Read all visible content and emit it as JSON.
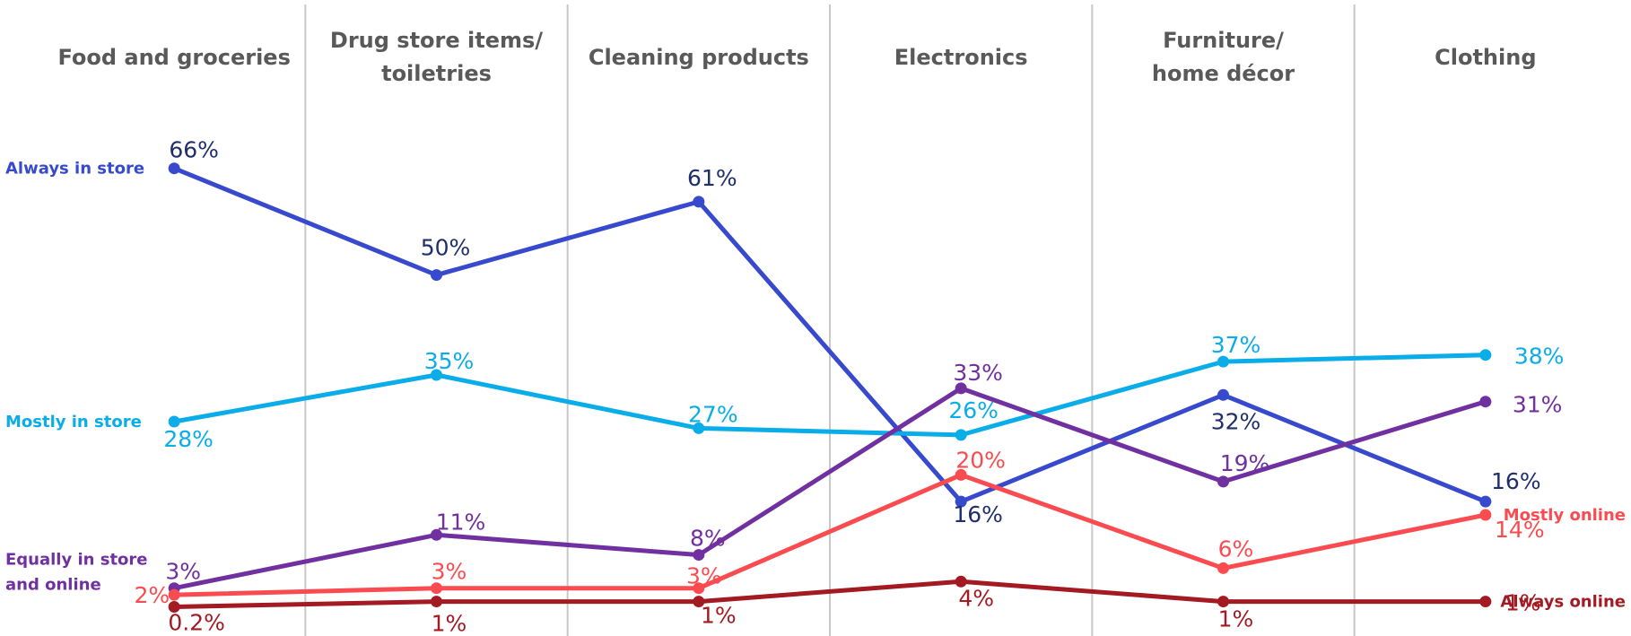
{
  "chart_data": {
    "type": "line",
    "categories": [
      "Food and groceries",
      "Drug store items/ toiletries",
      "Cleaning products",
      "Electronics",
      "Furniture/ home décor",
      "Clothing"
    ],
    "category_label_lines": [
      [
        "Food and groceries"
      ],
      [
        "Drug store items/",
        "toiletries"
      ],
      [
        "Cleaning products"
      ],
      [
        "Electronics"
      ],
      [
        "Furniture/",
        "home décor"
      ],
      [
        "Clothing"
      ]
    ],
    "unit": "%",
    "ylim": [
      0,
      70
    ],
    "grid": "vertical separators between categories",
    "series": [
      {
        "name": "Always in store",
        "name_lines": [
          "Always in store"
        ],
        "color": "#3749CC",
        "label_color": "#1F2F6B",
        "label_side": "left",
        "values": [
          66,
          50,
          61,
          16,
          32,
          16
        ],
        "labels": [
          "66%",
          "50%",
          "61%",
          "16%",
          "32%",
          "16%"
        ]
      },
      {
        "name": "Mostly in store",
        "name_lines": [
          "Mostly in store"
        ],
        "color": "#0AADE8",
        "label_color": "#0AADE8",
        "label_side": "left",
        "values": [
          28,
          35,
          27,
          26,
          37,
          38
        ],
        "labels": [
          "28%",
          "35%",
          "27%",
          "26%",
          "37%",
          "38%"
        ]
      },
      {
        "name": "Equally in store and online",
        "name_lines": [
          "Equally in store",
          "and online"
        ],
        "color": "#7030A0",
        "label_color": "#7030A0",
        "label_side": "left",
        "values": [
          3,
          11,
          8,
          33,
          19,
          31
        ],
        "labels": [
          "3%",
          "11%",
          "8%",
          "33%",
          "19%",
          "31%"
        ]
      },
      {
        "name": "Mostly online",
        "name_lines": [
          "Mostly online"
        ],
        "color": "#FA4C50",
        "label_color": "#FA4C50",
        "label_side": "right",
        "values": [
          2,
          3,
          3,
          20,
          6,
          14
        ],
        "labels": [
          "2%",
          "3%",
          "3%",
          "20%",
          "6%",
          "14%"
        ]
      },
      {
        "name": "Always online",
        "name_lines": [
          "Always online"
        ],
        "color": "#A31A22",
        "label_color": "#A31A22",
        "label_side": "right",
        "values": [
          0.2,
          1,
          1,
          4,
          1,
          1
        ],
        "labels": [
          "0.2%",
          "1%",
          "1%",
          "4%",
          "1%",
          "1%"
        ]
      }
    ]
  }
}
